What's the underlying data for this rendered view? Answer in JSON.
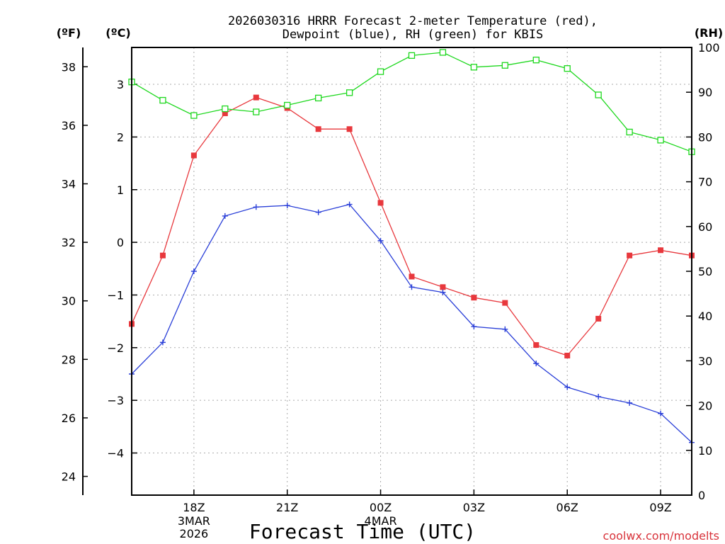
{
  "chart_data": {
    "type": "line",
    "title_line1": "2026030316 HRRR Forecast 2-meter Temperature (red),",
    "title_line2": "Dewpoint (blue), RH (green) for KBIS",
    "xlabel": "Forecast Time (UTC)",
    "credit": "coolwx.com/modelts",
    "unit_f": "(ºF)",
    "unit_c": "(ºC)",
    "unit_rh": "(RH)",
    "x_hours": [
      16,
      17,
      18,
      19,
      20,
      21,
      22,
      23,
      24,
      25,
      26,
      27,
      28,
      29,
      30,
      31,
      32,
      33,
      34
    ],
    "x_range": [
      16,
      34
    ],
    "x_ticks": [
      {
        "hour": 18,
        "label": "18Z"
      },
      {
        "hour": 21,
        "label": "21Z"
      },
      {
        "hour": 24,
        "label": "00Z"
      },
      {
        "hour": 27,
        "label": "03Z"
      },
      {
        "hour": 30,
        "label": "06Z"
      },
      {
        "hour": 33,
        "label": "09Z"
      }
    ],
    "date_labels": [
      {
        "hour": 18,
        "line1": "3MAR",
        "line2": "2026"
      },
      {
        "hour": 24,
        "line1": "4MAR",
        "line2": ""
      }
    ],
    "c_range": [
      -4.8,
      3.7
    ],
    "c_ticks": [
      3,
      2,
      1,
      0,
      -1,
      -2,
      -3,
      -4
    ],
    "f_ticks": [
      38,
      36,
      34,
      32,
      30,
      28,
      26,
      24
    ],
    "rh_range": [
      0,
      100
    ],
    "rh_ticks": [
      100,
      90,
      80,
      70,
      60,
      50,
      40,
      30,
      20,
      10,
      0
    ],
    "series": [
      {
        "name": "Temperature",
        "axis": "c",
        "color": "#e8383d",
        "marker": "filled-square",
        "values": [
          -1.55,
          -0.25,
          1.65,
          2.45,
          2.75,
          2.55,
          2.15,
          2.15,
          0.75,
          -0.65,
          -0.85,
          -1.05,
          -1.15,
          -1.95,
          -2.15,
          -1.45,
          -0.25,
          -0.15,
          -0.25
        ]
      },
      {
        "name": "Dewpoint",
        "axis": "c",
        "color": "#2a3fd8",
        "marker": "plus",
        "values": [
          -2.5,
          -1.9,
          -0.55,
          0.5,
          0.67,
          0.7,
          0.57,
          0.72,
          0.03,
          -0.85,
          -0.95,
          -1.6,
          -1.65,
          -2.3,
          -2.75,
          -2.93,
          -3.05,
          -3.25,
          -3.8
        ]
      },
      {
        "name": "RH",
        "axis": "rh",
        "color": "#1ed81e",
        "marker": "open-square",
        "values": [
          92.3,
          88.2,
          84.8,
          86.3,
          85.6,
          87.1,
          88.7,
          89.9,
          94.6,
          98.2,
          98.9,
          95.6,
          96.0,
          97.2,
          95.3,
          89.4,
          81.1,
          79.3,
          76.7
        ]
      }
    ]
  }
}
